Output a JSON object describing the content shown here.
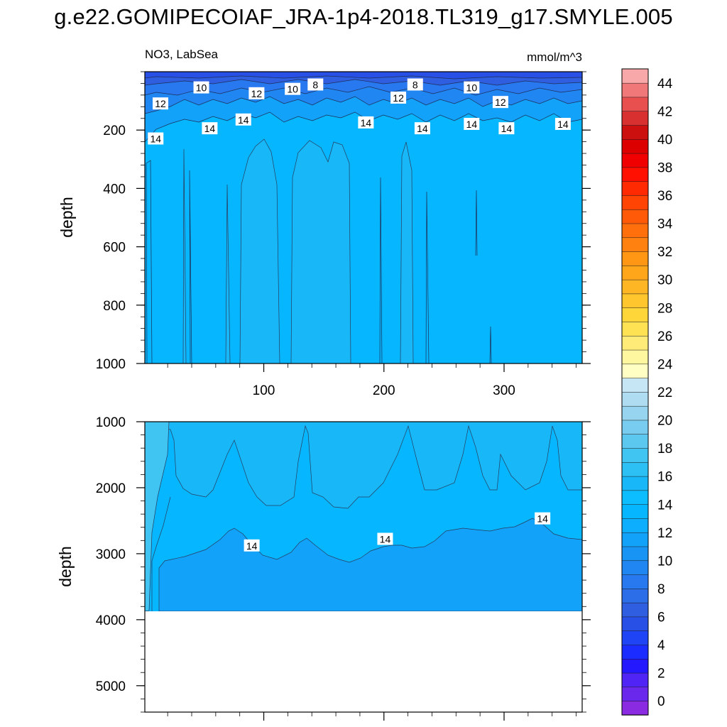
{
  "figure_title": "g.e22.GOMIPECOIAF_JRA-1p4-2018.TL319_g17.SMYLE.005",
  "chart_data": [
    {
      "type": "heatmap",
      "subtype": "filled-contour",
      "title_left": "NO3, LabSea",
      "title_right": "mmol/m^3",
      "ylabel": "depth",
      "xlim": [
        1,
        365
      ],
      "ylim": [
        1000,
        0
      ],
      "y_reversed": true,
      "x_ticks": [
        100,
        200,
        300
      ],
      "y_ticks": [
        200,
        400,
        600,
        800,
        1000
      ],
      "contour_levels_shown": [
        {
          "x": 48,
          "y": 55,
          "label": "10"
        },
        {
          "x": 143,
          "y": 45,
          "label": "8"
        },
        {
          "x": 94,
          "y": 75,
          "label": "12"
        },
        {
          "x": 124,
          "y": 60,
          "label": "10"
        },
        {
          "x": 14,
          "y": 110,
          "label": "12"
        },
        {
          "x": 55,
          "y": 195,
          "label": "14"
        },
        {
          "x": 83,
          "y": 165,
          "label": "14"
        },
        {
          "x": 10,
          "y": 230,
          "label": "14"
        },
        {
          "x": 212,
          "y": 90,
          "label": "12"
        },
        {
          "x": 226,
          "y": 45,
          "label": "8"
        },
        {
          "x": 273,
          "y": 55,
          "label": "10"
        },
        {
          "x": 297,
          "y": 105,
          "label": "12"
        },
        {
          "x": 185,
          "y": 175,
          "label": "14"
        },
        {
          "x": 232,
          "y": 195,
          "label": "14"
        },
        {
          "x": 273,
          "y": 180,
          "label": "14"
        },
        {
          "x": 302,
          "y": 195,
          "label": "14"
        },
        {
          "x": 349,
          "y": 180,
          "label": "14"
        }
      ],
      "field_summary": "NO3 ~6-8 near surface increasing to ~14 by 150-200 m; 14-15 below 200 m with vertical 15-contour streaks"
    },
    {
      "type": "heatmap",
      "subtype": "filled-contour",
      "ylabel": "depth",
      "xlim": [
        1,
        365
      ],
      "ylim": [
        5400,
        1000
      ],
      "y_reversed": true,
      "y_ticks": [
        1000,
        2000,
        3000,
        4000,
        5000
      ],
      "x_ticks": [
        100,
        200,
        300
      ],
      "ocean_floor_depth": 3850,
      "contour_levels_shown": [
        {
          "x": 90,
          "y": 2880,
          "label": "14"
        },
        {
          "x": 201,
          "y": 2780,
          "label": "14"
        },
        {
          "x": 332,
          "y": 2470,
          "label": "14"
        }
      ],
      "field_summary": "NO3 ~15 above ~2200 m, ~14-15 to ~2800-3100 m, ~13-14 below to the bottom near 3850 m"
    }
  ],
  "colorbar": {
    "levels": [
      0,
      2,
      4,
      6,
      8,
      10,
      12,
      14,
      16,
      18,
      20,
      22,
      24,
      26,
      28,
      30,
      32,
      34,
      36,
      38,
      40,
      42,
      44
    ],
    "colors": [
      "#8a2be2",
      "#6a28ec",
      "#5024f4",
      "#2418ff",
      "#1a2cff",
      "#1f44f5",
      "#2850e6",
      "#2f5fe0",
      "#2b6ee8",
      "#2878f0",
      "#2086f2",
      "#1894f5",
      "#12a2f9",
      "#0eaeff",
      "#06b6ff",
      "#0cbeff",
      "#18b8f8",
      "#2cc0f4",
      "#40c4f2",
      "#5cc8f0",
      "#78ccef",
      "#96d4f0",
      "#b0dcf2",
      "#c6e6f6",
      "#ffffc4",
      "#fff6a0",
      "#ffec78",
      "#ffe254",
      "#ffd63a",
      "#ffc62e",
      "#ffb624",
      "#ffa61a",
      "#ff9614",
      "#ff8210",
      "#ff700c",
      "#ff5a08",
      "#ff4404",
      "#ff2a02",
      "#ff1000",
      "#f00000",
      "#dc0000",
      "#cc1010",
      "#d83030",
      "#e85050",
      "#f07878",
      "#f8a8a8"
    ]
  }
}
